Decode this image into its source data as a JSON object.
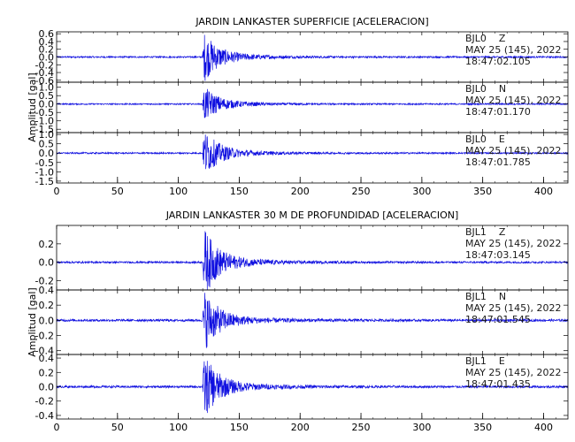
{
  "chart_data": [
    {
      "type": "line",
      "title": "JARDIN LANKASTER SUPERFICIE [ACELERACION]",
      "ylabel": "Amplitud [gal]",
      "xlabel": "",
      "xlim": [
        0,
        420
      ],
      "x_ticks": [
        0,
        50,
        100,
        150,
        200,
        250,
        300,
        350,
        400
      ],
      "grid": false,
      "line_color": "#1010e0",
      "panels": [
        {
          "station": "BJL0",
          "component": "Z",
          "date": "MAY 25 (145), 2022",
          "time": "18:47:02.105",
          "ylim": [
            -0.65,
            0.65
          ],
          "y_ticks": [
            0.6,
            0.4,
            0.2,
            0.0,
            -0.2,
            -0.4,
            -0.6
          ],
          "event_start": 120,
          "peak": 0.6,
          "noise": 0.02
        },
        {
          "station": "BJL0",
          "component": "N",
          "date": "MAY 25 (145), 2022",
          "time": "18:47:01.170",
          "ylim": [
            -1.7,
            1.3
          ],
          "y_ticks": [
            1.0,
            0.5,
            0.0,
            -0.5,
            -1.0,
            -1.5
          ],
          "event_start": 120,
          "peak": 1.0,
          "noise": 0.04
        },
        {
          "station": "BJL0",
          "component": "E",
          "date": "MAY 25 (145), 2022",
          "time": "18:47:01.785",
          "ylim": [
            -1.6,
            1.1
          ],
          "y_ticks": [
            1.0,
            0.5,
            0.0,
            -0.5,
            -1.0,
            -1.5
          ],
          "event_start": 120,
          "peak": 1.2,
          "noise": 0.04
        }
      ]
    },
    {
      "type": "line",
      "title": "JARDIN LANKASTER 30 M DE PROFUNDIDAD [ACELERACION]",
      "ylabel": "Amplitud [gal]",
      "xlabel": "",
      "xlim": [
        0,
        420
      ],
      "x_ticks": [
        0,
        50,
        100,
        150,
        200,
        250,
        300,
        350,
        400
      ],
      "grid": false,
      "line_color": "#1010e0",
      "panels": [
        {
          "station": "BJL1",
          "component": "Z",
          "date": "MAY 25 (145), 2022",
          "time": "18:47:03.145",
          "ylim": [
            -0.3,
            0.4
          ],
          "y_ticks": [
            0.2,
            0.0,
            -0.2
          ],
          "event_start": 120,
          "peak": 0.35,
          "noise": 0.01
        },
        {
          "station": "BJL1",
          "component": "N",
          "date": "MAY 25 (145), 2022",
          "time": "18:47:01.545",
          "ylim": [
            -0.45,
            0.4
          ],
          "y_ticks": [
            0.4,
            0.2,
            0.0,
            -0.2,
            -0.4
          ],
          "event_start": 120,
          "peak": 0.38,
          "noise": 0.015
        },
        {
          "station": "BJL1",
          "component": "E",
          "date": "MAY 25 (145), 2022",
          "time": "18:47:01.435",
          "ylim": [
            -0.45,
            0.45
          ],
          "y_ticks": [
            0.4,
            0.2,
            0.0,
            -0.2,
            -0.4
          ],
          "event_start": 120,
          "peak": 0.42,
          "noise": 0.015
        }
      ]
    }
  ]
}
